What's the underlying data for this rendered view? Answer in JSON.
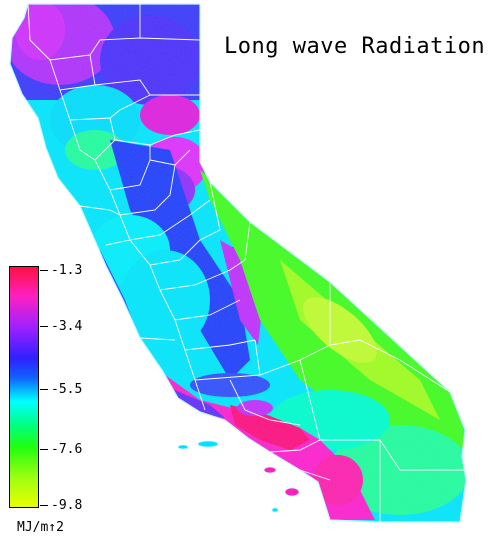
{
  "title": "Long wave Radiation",
  "legend": {
    "ticks": [
      "-1.3",
      "-3.4",
      "-5.5",
      "-7.6",
      "-9.8"
    ],
    "unit": "MJ/m↑2",
    "colors": [
      "#ff1040",
      "#ff20c0",
      "#a020ff",
      "#3020ff",
      "#00ffff",
      "#00ff80",
      "#20ff10",
      "#a0ff10",
      "#e8ff00"
    ]
  }
}
